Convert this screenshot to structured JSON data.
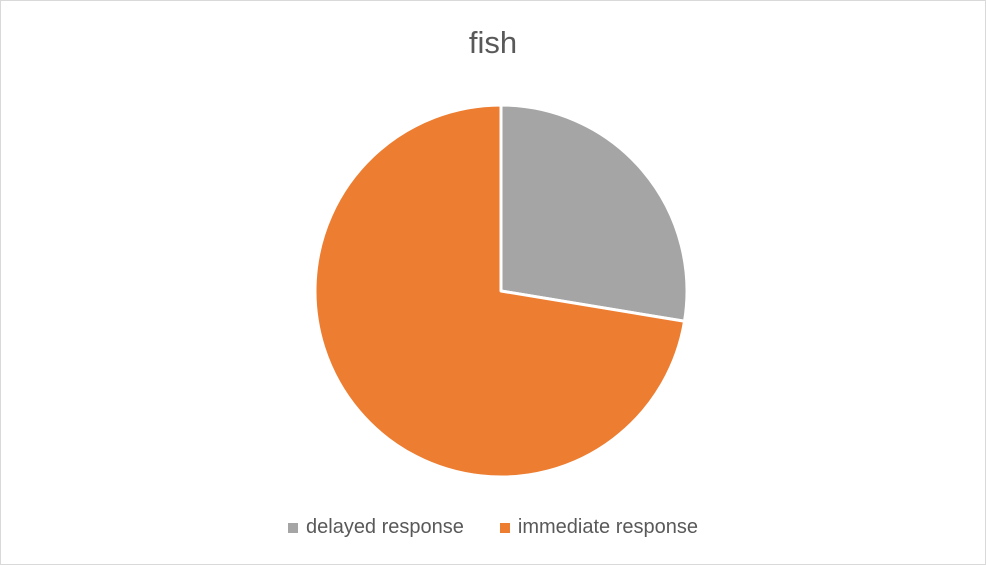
{
  "chart_data": {
    "type": "pie",
    "title": "fish",
    "categories": [
      "delayed response",
      "immediate response"
    ],
    "values": [
      27.6,
      72.4
    ],
    "colors": [
      "#a5a5a5",
      "#ed7d31"
    ],
    "legend_position": "bottom"
  }
}
